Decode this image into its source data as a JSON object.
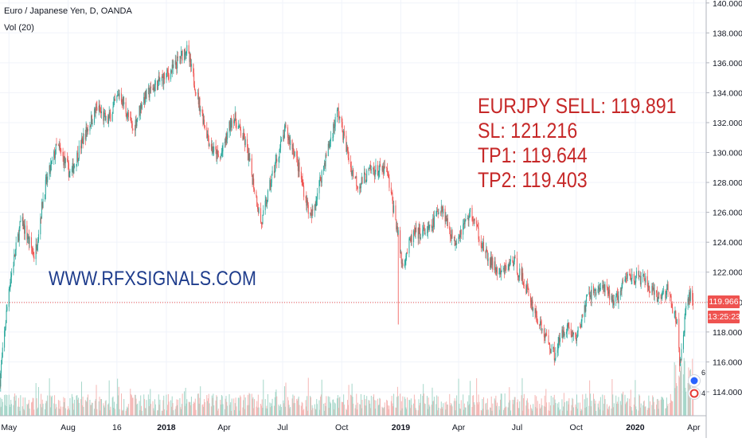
{
  "legend": {
    "title": "Euro / Japanese Yen, D, OANDA",
    "volume": "Vol (20)"
  },
  "annotations": {
    "website": "WWW.RFXSIGNALS.COM",
    "signal_lines": [
      "EURJPY SELL: 119.891",
      "SL: 121.216",
      "TP1: 119.644",
      "TP2: 119.403"
    ]
  },
  "price_axis": {
    "last_price": "119.966",
    "countdown": "13:25:23"
  },
  "colors": {
    "up": "#26a69a",
    "down": "#ef5350",
    "current_price_line": "#ef5350"
  },
  "chart_data": {
    "type": "candlestick",
    "symbol": "EURJPY",
    "interval": "D",
    "y_axis": {
      "ticks": [
        "114.000",
        "116.000",
        "118.000",
        "120.000",
        "122.000",
        "124.000",
        "126.000",
        "128.000",
        "130.000",
        "132.000",
        "134.000",
        "136.000",
        "138.000",
        "140.000"
      ],
      "ylim": [
        112.4,
        140.2
      ]
    },
    "x_axis": {
      "ticks": [
        "May",
        "Aug",
        "16",
        "2018",
        "Apr",
        "Jul",
        "Oct",
        "2019",
        "Apr",
        "Jul",
        "Oct",
        "2020",
        "Apr"
      ]
    },
    "current_price": 119.966,
    "price_path": [
      {
        "t": "2017-04-17",
        "p": 114.8
      },
      {
        "t": "2017-05-01",
        "p": 121.0
      },
      {
        "t": "2017-05-20",
        "p": 125.5
      },
      {
        "t": "2017-06-10",
        "p": 123.0
      },
      {
        "t": "2017-06-25",
        "p": 127.5
      },
      {
        "t": "2017-07-15",
        "p": 130.5
      },
      {
        "t": "2017-08-05",
        "p": 128.5
      },
      {
        "t": "2017-08-25",
        "p": 131.0
      },
      {
        "t": "2017-09-15",
        "p": 133.0
      },
      {
        "t": "2017-10-01",
        "p": 132.0
      },
      {
        "t": "2017-10-20",
        "p": 134.0
      },
      {
        "t": "2017-11-10",
        "p": 131.5
      },
      {
        "t": "2017-11-25",
        "p": 133.5
      },
      {
        "t": "2017-12-15",
        "p": 134.5
      },
      {
        "t": "2018-01-10",
        "p": 135.5
      },
      {
        "t": "2018-02-01",
        "p": 137.0
      },
      {
        "t": "2018-02-20",
        "p": 133.5
      },
      {
        "t": "2018-03-10",
        "p": 130.5
      },
      {
        "t": "2018-03-25",
        "p": 129.5
      },
      {
        "t": "2018-04-15",
        "p": 132.5
      },
      {
        "t": "2018-05-05",
        "p": 130.5
      },
      {
        "t": "2018-05-29",
        "p": 125.2
      },
      {
        "t": "2018-06-15",
        "p": 128.5
      },
      {
        "t": "2018-07-05",
        "p": 131.5
      },
      {
        "t": "2018-07-20",
        "p": 130.0
      },
      {
        "t": "2018-08-14",
        "p": 125.5
      },
      {
        "t": "2018-09-01",
        "p": 128.8
      },
      {
        "t": "2018-09-25",
        "p": 132.8
      },
      {
        "t": "2018-10-15",
        "p": 129.0
      },
      {
        "t": "2018-10-27",
        "p": 127.8
      },
      {
        "t": "2018-11-15",
        "p": 128.8
      },
      {
        "t": "2018-12-10",
        "p": 128.8
      },
      {
        "t": "2018-12-26",
        "p": 125.0
      },
      {
        "t": "2019-01-03",
        "p": 122.5
      },
      {
        "t": "2019-01-20",
        "p": 124.5
      },
      {
        "t": "2019-02-15",
        "p": 124.8
      },
      {
        "t": "2019-03-05",
        "p": 126.5
      },
      {
        "t": "2019-03-25",
        "p": 124.0
      },
      {
        "t": "2019-04-20",
        "p": 126.0
      },
      {
        "t": "2019-05-15",
        "p": 123.0
      },
      {
        "t": "2019-06-05",
        "p": 121.8
      },
      {
        "t": "2019-06-25",
        "p": 122.8
      },
      {
        "t": "2019-07-15",
        "p": 121.0
      },
      {
        "t": "2019-08-05",
        "p": 118.5
      },
      {
        "t": "2019-08-28",
        "p": 116.5
      },
      {
        "t": "2019-09-15",
        "p": 118.5
      },
      {
        "t": "2019-10-01",
        "p": 117.5
      },
      {
        "t": "2019-10-20",
        "p": 120.5
      },
      {
        "t": "2019-11-10",
        "p": 121.0
      },
      {
        "t": "2019-12-01",
        "p": 120.0
      },
      {
        "t": "2019-12-20",
        "p": 121.8
      },
      {
        "t": "2020-01-15",
        "p": 121.5
      },
      {
        "t": "2020-02-03",
        "p": 120.2
      },
      {
        "t": "2020-02-20",
        "p": 120.8
      },
      {
        "t": "2020-03-06",
        "p": 118.5
      },
      {
        "t": "2020-03-10",
        "p": 115.8
      },
      {
        "t": "2020-03-20",
        "p": 119.5
      },
      {
        "t": "2020-03-27",
        "p": 120.5
      },
      {
        "t": "2020-03-31",
        "p": 119.966
      }
    ],
    "volume_note": "Vol (20) histogram, relatively flat with a spike in March 2020"
  }
}
